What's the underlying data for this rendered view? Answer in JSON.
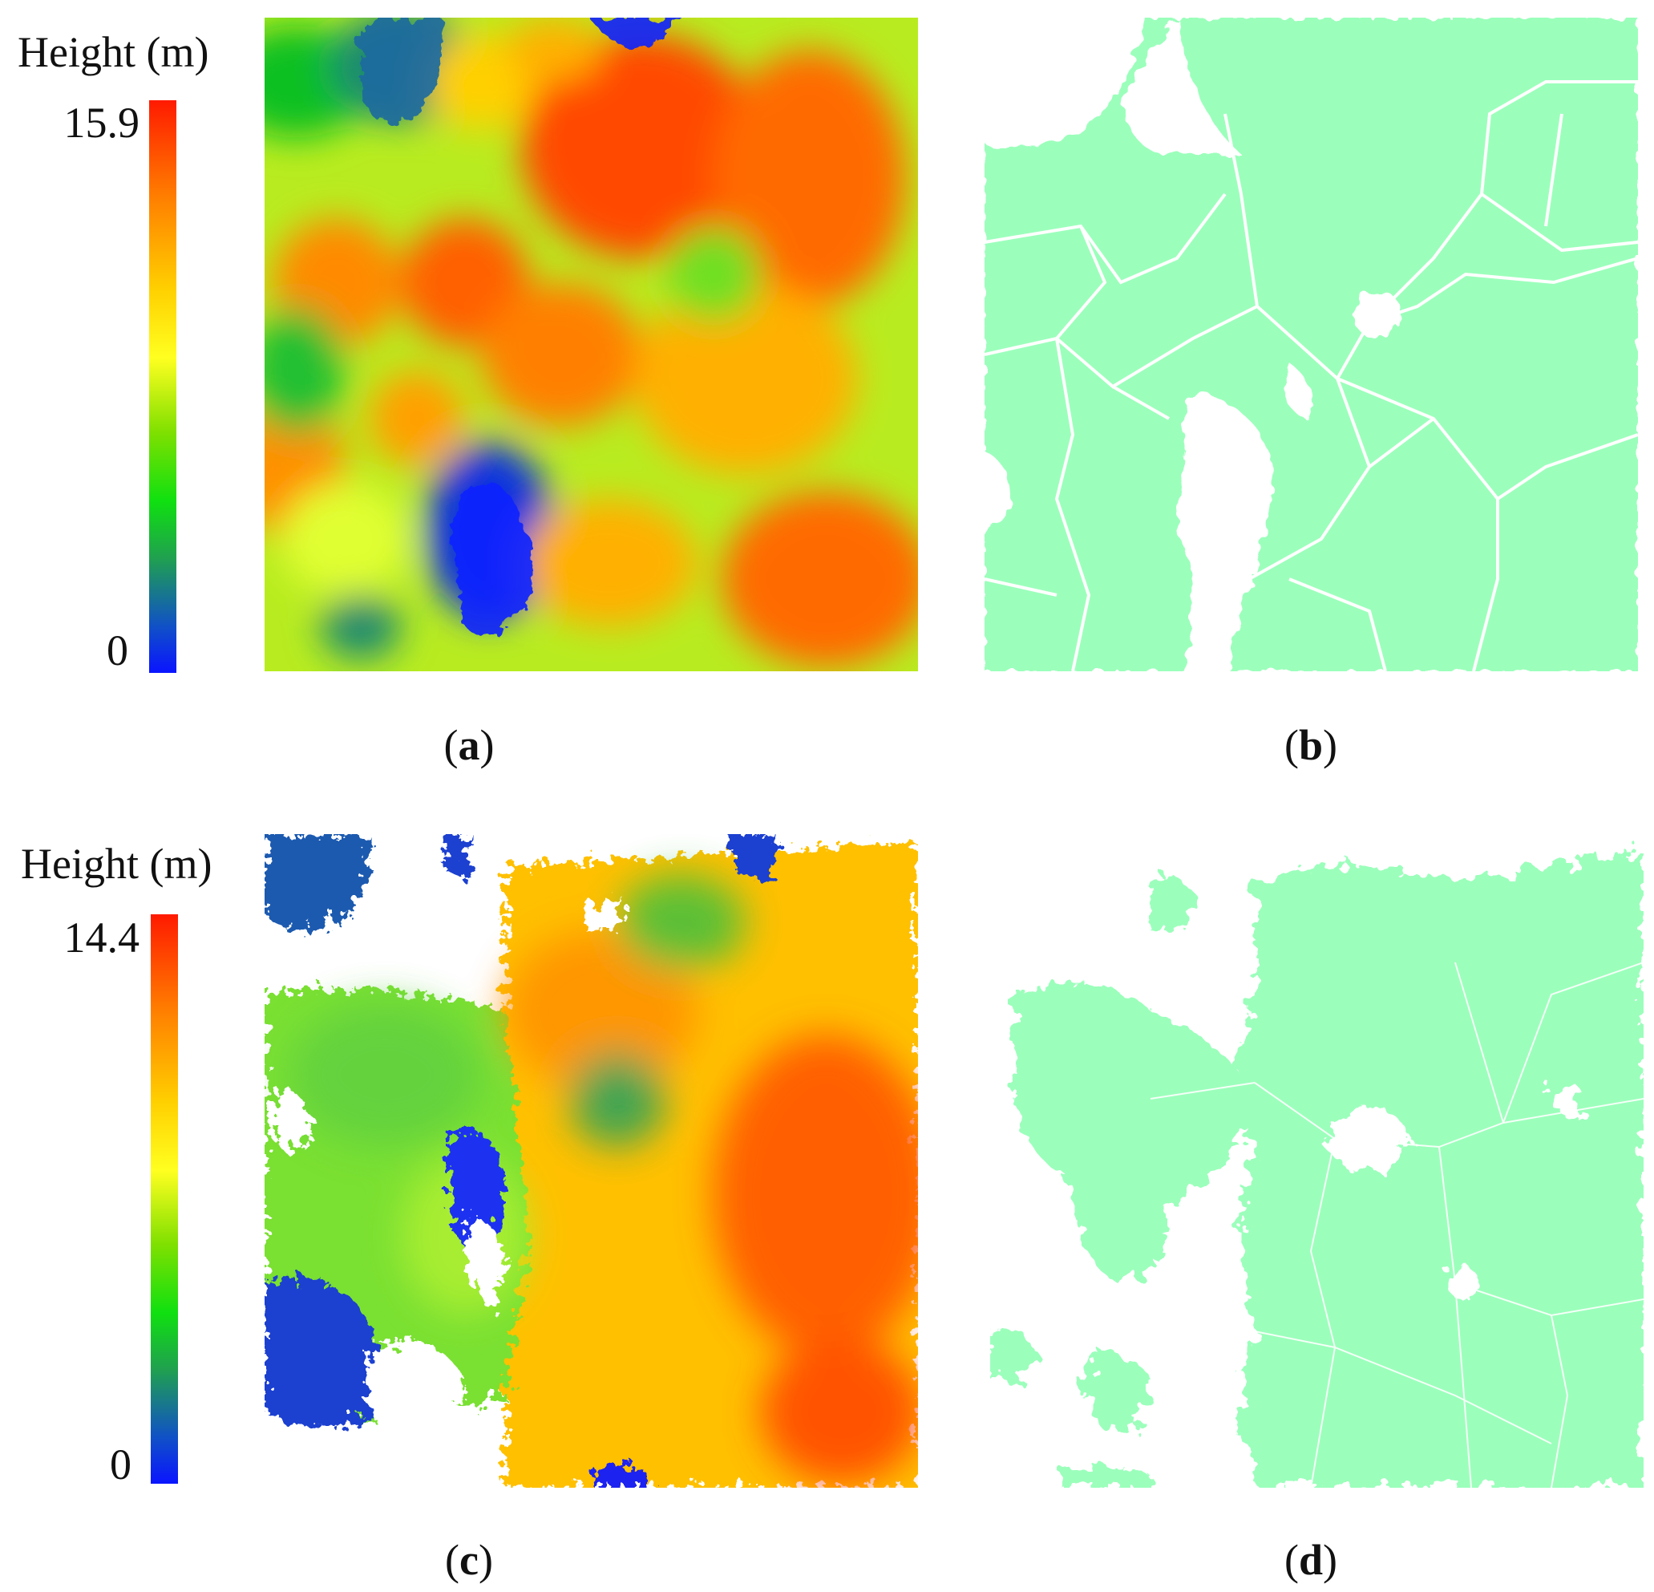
{
  "panels": {
    "a": {
      "legend_title": "Height (m)",
      "max_label": "15.9",
      "min_label": "0",
      "caption_letter": "a"
    },
    "b": {
      "caption_letter": "b"
    },
    "c": {
      "legend_title": "Height (m)",
      "max_label": "14.4",
      "min_label": "0",
      "caption_letter": "c"
    },
    "d": {
      "caption_letter": "d"
    }
  },
  "colors": {
    "segment_fill": "#9bffbb",
    "boundary": "#ffffff",
    "ramp": [
      "#0a14ff",
      "#20a050",
      "#10e010",
      "#ffff20",
      "#ffd000",
      "#ff7f00",
      "#ff1a00"
    ]
  }
}
